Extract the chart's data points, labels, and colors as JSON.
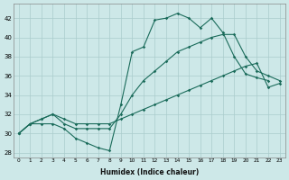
{
  "xlabel": "Humidex (Indice chaleur)",
  "ylabel": "",
  "bg_color": "#cde8e8",
  "grid_color": "#aacccc",
  "line_color": "#1a6b5a",
  "xlim": [
    -0.5,
    23.5
  ],
  "ylim": [
    27.5,
    43.5
  ],
  "xticks": [
    0,
    1,
    2,
    3,
    4,
    5,
    6,
    7,
    8,
    9,
    10,
    11,
    12,
    13,
    14,
    15,
    16,
    17,
    18,
    19,
    20,
    21,
    22,
    23
  ],
  "yticks": [
    28,
    30,
    32,
    34,
    36,
    38,
    40,
    42
  ],
  "curve1_x": [
    0,
    1,
    2,
    3,
    4,
    5,
    6,
    7,
    8,
    9,
    10,
    11,
    12,
    13,
    14,
    15,
    16,
    17,
    18,
    19,
    20,
    21,
    22
  ],
  "curve1_y": [
    30.0,
    31.0,
    31.0,
    31.0,
    30.5,
    29.5,
    29.0,
    28.5,
    28.2,
    33.0,
    38.5,
    39.0,
    41.8,
    42.0,
    42.5,
    42.0,
    41.0,
    42.0,
    40.5,
    38.0,
    36.2,
    35.8,
    35.5
  ],
  "curve2_x": [
    0,
    1,
    2,
    3,
    4,
    5,
    6,
    7,
    8,
    9,
    10,
    11,
    12,
    13,
    14,
    15,
    16,
    17,
    18,
    19,
    20,
    21,
    22,
    23
  ],
  "curve2_y": [
    30.0,
    31.0,
    31.5,
    32.0,
    31.0,
    30.5,
    30.5,
    30.5,
    30.5,
    32.0,
    34.0,
    35.5,
    36.5,
    37.5,
    38.5,
    39.0,
    39.5,
    40.0,
    40.3,
    40.3,
    38.0,
    36.5,
    36.0,
    35.5
  ],
  "curve3_x": [
    0,
    1,
    2,
    3,
    4,
    5,
    6,
    7,
    8,
    9,
    10,
    11,
    12,
    13,
    14,
    15,
    16,
    17,
    18,
    19,
    20,
    21,
    22,
    23
  ],
  "curve3_y": [
    30.0,
    31.0,
    31.5,
    32.0,
    31.5,
    31.0,
    31.0,
    31.0,
    31.0,
    31.5,
    32.0,
    32.5,
    33.0,
    33.5,
    34.0,
    34.5,
    35.0,
    35.5,
    36.0,
    36.5,
    37.0,
    37.3,
    34.8,
    35.2
  ]
}
